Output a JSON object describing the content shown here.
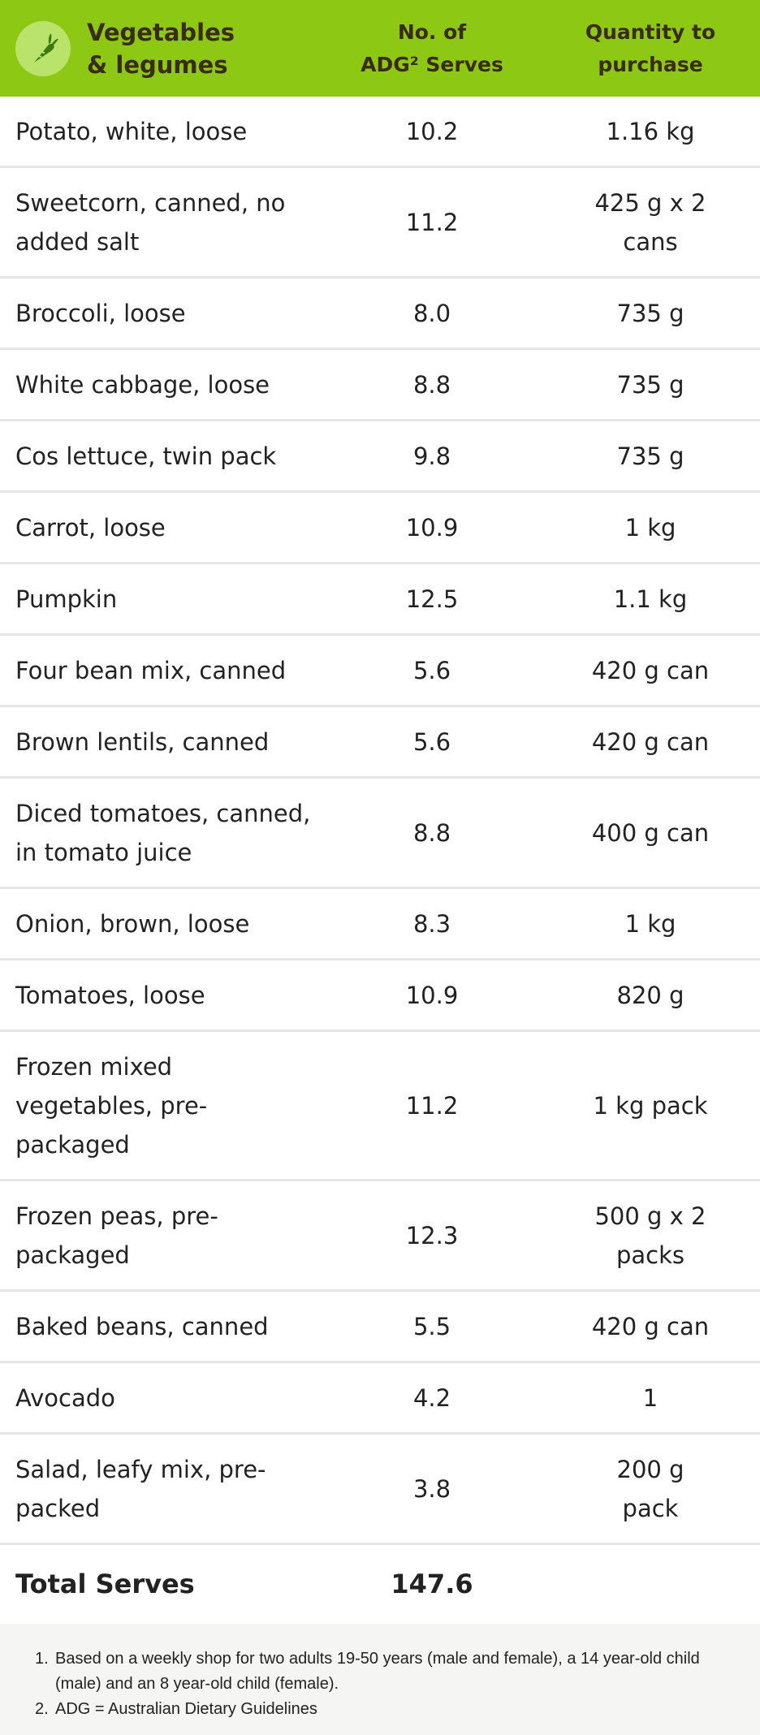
{
  "header": {
    "title": "Vegetables\n& legumes",
    "col2": "No. of\nADG² Serves",
    "col3": "Quantity to\npurchase",
    "icon": "carrot-icon",
    "bg_color": "#8cc814"
  },
  "rows": [
    {
      "name": "Potato, white, loose",
      "serves": "10.2",
      "qty": "1.16 kg"
    },
    {
      "name": "Sweetcorn, canned, no added salt",
      "serves": "11.2",
      "qty": "425 g x 2 cans"
    },
    {
      "name": "Broccoli, loose",
      "serves": "8.0",
      "qty": "735 g"
    },
    {
      "name": "White cabbage, loose",
      "serves": "8.8",
      "qty": "735 g"
    },
    {
      "name": "Cos lettuce, twin pack",
      "serves": "9.8",
      "qty": "735 g"
    },
    {
      "name": "Carrot, loose",
      "serves": "10.9",
      "qty": "1 kg"
    },
    {
      "name": "Pumpkin",
      "serves": "12.5",
      "qty": "1.1 kg"
    },
    {
      "name": "Four bean mix, canned",
      "serves": "5.6",
      "qty": "420 g can"
    },
    {
      "name": "Brown lentils, canned",
      "serves": "5.6",
      "qty": "420 g can"
    },
    {
      "name": "Diced tomatoes, canned, in tomato juice",
      "serves": "8.8",
      "qty": "400 g can"
    },
    {
      "name": "Onion, brown, loose",
      "serves": "8.3",
      "qty": "1 kg"
    },
    {
      "name": "Tomatoes, loose",
      "serves": "10.9",
      "qty": "820 g"
    },
    {
      "name": "Frozen mixed vegetables, pre-packaged",
      "serves": "11.2",
      "qty": "1 kg pack"
    },
    {
      "name": "Frozen peas, pre-packaged",
      "serves": "12.3",
      "qty": "500 g x 2 packs"
    },
    {
      "name": "Baked beans, canned",
      "serves": "5.5",
      "qty": "420 g can"
    },
    {
      "name": "Avocado",
      "serves": "4.2",
      "qty": "1"
    },
    {
      "name": "Salad, leafy mix, pre-packed",
      "serves": "3.8",
      "qty": "200 g pack"
    }
  ],
  "total": {
    "label": "Total Serves",
    "value": "147.6"
  },
  "footnotes": [
    {
      "num": "1.",
      "text": "Based on a weekly shop for two adults 19-50 years (male and female), a 14 year-old child (male) and an 8 year-old child (female)."
    },
    {
      "num": "2.",
      "text": "ADG = Australian Dietary Guidelines"
    }
  ]
}
